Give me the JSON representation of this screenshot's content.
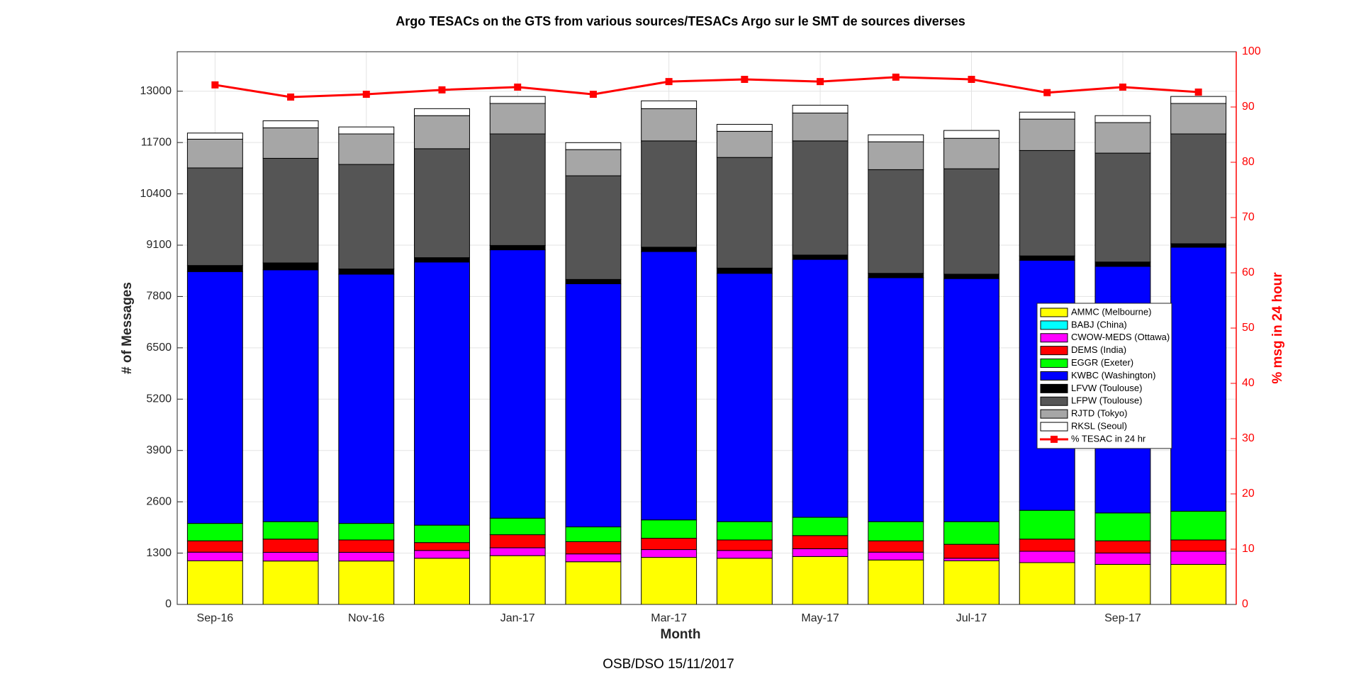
{
  "chart_data": {
    "type": "bar",
    "stacked": true,
    "title": "Argo TESACs on the GTS from various sources/TESACs Argo sur le SMT de sources diverses",
    "xlabel": "Month",
    "ylabel": "# of Messages",
    "y2label": "% msg in 24 hour",
    "annotation": "OSB/DSO 15/11/2017",
    "categories": [
      "Sep-16",
      null,
      "Nov-16",
      null,
      "Jan-17",
      null,
      "Mar-17",
      null,
      "May-17",
      null,
      "Jul-17",
      null,
      "Sep-17",
      null
    ],
    "ylim": [
      0,
      14000
    ],
    "yticks": [
      0,
      1300,
      2600,
      3900,
      5200,
      6500,
      7800,
      9100,
      10400,
      11700,
      13000
    ],
    "y2lim": [
      0,
      100
    ],
    "y2ticks": [
      0,
      10,
      20,
      30,
      40,
      50,
      60,
      70,
      80,
      90,
      100
    ],
    "grid": true,
    "legend": "center right",
    "series": [
      {
        "name": "AMMC (Melbourne)",
        "color": "#ffff00",
        "values": [
          1104,
          1100,
          1100,
          1170,
          1236,
          1081,
          1192,
          1170,
          1214,
          1126,
          1104,
          1059,
          1015,
          1015
        ]
      },
      {
        "name": "BABJ (China)",
        "color": "#00ffff",
        "values": [
          0,
          0,
          0,
          0,
          0,
          0,
          0,
          0,
          0,
          0,
          0,
          0,
          0,
          0
        ]
      },
      {
        "name": "CWOW-MEDS (Ottawa)",
        "color": "#ff00ff",
        "values": [
          220,
          220,
          220,
          198,
          199,
          199,
          198,
          198,
          198,
          198,
          66,
          287,
          287,
          331
        ]
      },
      {
        "name": "DEMS (India)",
        "color": "#ff0000",
        "values": [
          287,
          335,
          313,
          199,
          331,
          309,
          287,
          265,
          332,
          287,
          353,
          309,
          309,
          287
        ]
      },
      {
        "name": "EGGR (Exeter)",
        "color": "#00ff00",
        "values": [
          442,
          442,
          420,
          441,
          419,
          375,
          464,
          464,
          463,
          486,
          574,
          729,
          706,
          728
        ]
      },
      {
        "name": "KWBC (Washington)",
        "color": "#0000ff",
        "values": [
          6378,
          6378,
          6312,
          6665,
          6797,
          6158,
          6797,
          6290,
          6533,
          6179,
          6157,
          6334,
          6246,
          6688
        ]
      },
      {
        "name": "LFVW (Toulouse)",
        "color": "#000000",
        "values": [
          154,
          176,
          132,
          111,
          111,
          110,
          111,
          132,
          110,
          111,
          111,
          110,
          111,
          88
        ]
      },
      {
        "name": "LFPW (Toulouse)",
        "color": "#555555",
        "values": [
          2472,
          2649,
          2648,
          2759,
          2825,
          2626,
          2692,
          2803,
          2891,
          2626,
          2670,
          2670,
          2758,
          2781
        ]
      },
      {
        "name": "RJTD (Tokyo)",
        "color": "#a6a6a6",
        "values": [
          728,
          772,
          773,
          838,
          772,
          663,
          817,
          662,
          706,
          706,
          772,
          795,
          773,
          772
        ]
      },
      {
        "name": "RKSL (Seoul)",
        "color": "#ffffff",
        "values": [
          155,
          178,
          177,
          177,
          177,
          176,
          198,
          177,
          199,
          177,
          199,
          177,
          176,
          177
        ]
      },
      {
        "name": "% TESAC in 24 hr",
        "color": "#ff0000",
        "type": "line",
        "axis": "y2",
        "marker": "square",
        "values": [
          94.0,
          91.8,
          92.3,
          93.1,
          93.6,
          92.3,
          94.6,
          95.0,
          94.6,
          95.4,
          95.0,
          92.6,
          93.6,
          92.7
        ]
      }
    ]
  }
}
